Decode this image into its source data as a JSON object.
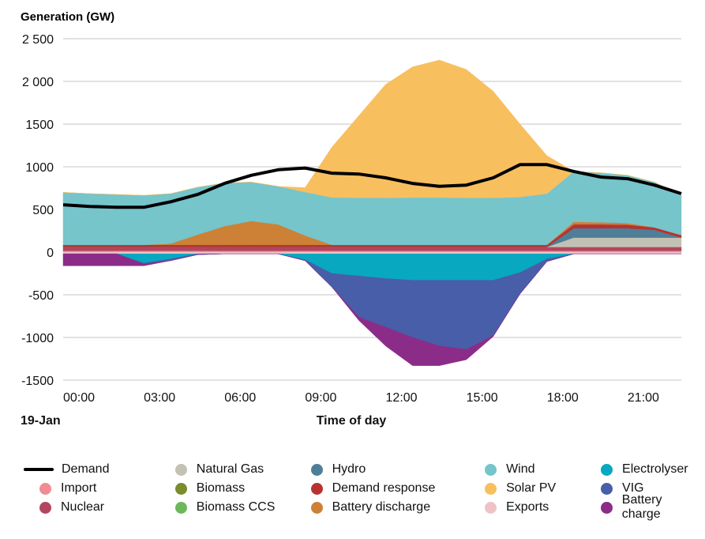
{
  "chart_data": {
    "type": "area",
    "title": "",
    "ylabel": "Generation (GW)",
    "xlabel": "Time of day",
    "date_label": "19-Jan",
    "ylim": [
      -1500,
      2500
    ],
    "yticks": [
      2500,
      2000,
      1500,
      1000,
      500,
      0,
      -500,
      -1000,
      -1500
    ],
    "ytick_labels": [
      "2 500",
      "2 000",
      "1500",
      "1000",
      "500",
      "0",
      "-500",
      "-1000",
      "-1500"
    ],
    "xticks": [
      0,
      3,
      6,
      9,
      12,
      15,
      18,
      21
    ],
    "xtick_labels": [
      "00:00",
      "03:00",
      "06:00",
      "09:00",
      "12:00",
      "15:00",
      "18:00",
      "21:00"
    ],
    "grid": true,
    "legend_position": "bottom",
    "x": [
      0,
      1,
      2,
      3,
      4,
      5,
      6,
      7,
      8,
      9,
      10,
      11,
      12,
      13,
      14,
      15,
      16,
      17,
      18,
      19,
      20,
      21,
      22,
      23
    ],
    "positive_series": [
      {
        "name": "Import",
        "color": "#f08c94",
        "values": [
          15,
          15,
          15,
          15,
          15,
          15,
          15,
          15,
          15,
          15,
          15,
          15,
          15,
          15,
          15,
          15,
          15,
          15,
          15,
          15,
          15,
          15,
          15,
          15
        ]
      },
      {
        "name": "Nuclear",
        "color": "#b2465e",
        "values": [
          45,
          45,
          45,
          45,
          45,
          45,
          45,
          45,
          45,
          45,
          45,
          45,
          45,
          45,
          45,
          45,
          45,
          45,
          45,
          45,
          45,
          45,
          45,
          45
        ]
      },
      {
        "name": "Natural Gas",
        "color": "#c3c1b3",
        "values": [
          0,
          0,
          0,
          0,
          0,
          0,
          0,
          0,
          0,
          0,
          0,
          0,
          0,
          0,
          0,
          0,
          0,
          0,
          0,
          110,
          110,
          110,
          110,
          110
        ]
      },
      {
        "name": "Hydro",
        "color": "#4f7f98",
        "values": [
          0,
          0,
          0,
          0,
          0,
          0,
          0,
          0,
          0,
          0,
          0,
          0,
          0,
          0,
          0,
          0,
          0,
          0,
          0,
          110,
          110,
          110,
          90,
          0
        ]
      },
      {
        "name": "Biomass",
        "color": "#7a8c2b",
        "values": [
          0,
          0,
          0,
          0,
          0,
          0,
          0,
          0,
          0,
          0,
          0,
          0,
          0,
          0,
          0,
          0,
          0,
          0,
          0,
          0,
          0,
          0,
          0,
          0
        ]
      },
      {
        "name": "Biomass CCS",
        "color": "#6db85a",
        "values": [
          0,
          0,
          0,
          0,
          0,
          0,
          0,
          0,
          0,
          0,
          0,
          0,
          0,
          0,
          0,
          0,
          0,
          0,
          0,
          0,
          0,
          0,
          0,
          0
        ]
      },
      {
        "name": "Demand response",
        "color": "#b83232",
        "values": [
          25,
          25,
          25,
          25,
          25,
          25,
          25,
          25,
          25,
          25,
          25,
          25,
          25,
          25,
          25,
          25,
          25,
          25,
          25,
          45,
          45,
          40,
          30,
          30
        ]
      },
      {
        "name": "Battery discharge",
        "color": "#cd8136",
        "values": [
          0,
          0,
          0,
          0,
          15,
          120,
          220,
          280,
          240,
          110,
          0,
          0,
          0,
          0,
          0,
          0,
          0,
          0,
          0,
          30,
          25,
          20,
          0,
          0
        ]
      },
      {
        "name": "Wind",
        "color": "#75c5cb",
        "values": [
          615,
          600,
          590,
          580,
          585,
          555,
          505,
          455,
          445,
          510,
          555,
          553,
          550,
          555,
          555,
          550,
          550,
          560,
          600,
          590,
          580,
          560,
          530,
          465
        ]
      },
      {
        "name": "Solar PV",
        "color": "#f8bf5f",
        "values": [
          0,
          0,
          0,
          0,
          0,
          0,
          0,
          0,
          0,
          50,
          590,
          960,
          1330,
          1530,
          1610,
          1505,
          1250,
          855,
          445,
          0,
          0,
          0,
          0,
          0
        ]
      }
    ],
    "negative_series": [
      {
        "name": "Exports",
        "color": "#efc3c6",
        "values": [
          -20,
          -20,
          -20,
          -20,
          -20,
          -20,
          -20,
          -20,
          -20,
          -20,
          -20,
          -20,
          -20,
          -20,
          -20,
          -20,
          -20,
          -20,
          -20,
          -20,
          -20,
          -20,
          -20,
          -20
        ]
      },
      {
        "name": "Electrolyser",
        "color": "#08a8c0",
        "values": [
          0,
          0,
          0,
          -110,
          -60,
          0,
          0,
          0,
          0,
          -70,
          -230,
          -260,
          -290,
          -310,
          -310,
          -310,
          -310,
          -220,
          -60,
          0,
          0,
          0,
          0,
          0
        ]
      },
      {
        "name": "VIG",
        "color": "#485ea8",
        "values": [
          0,
          0,
          0,
          -10,
          -20,
          -10,
          0,
          0,
          0,
          -10,
          -160,
          -480,
          -570,
          -670,
          -770,
          -810,
          -650,
          -250,
          -30,
          0,
          0,
          0,
          0,
          0
        ]
      },
      {
        "name": "Battery charge",
        "color": "#8b2c89",
        "values": [
          -140,
          -140,
          -140,
          -20,
          0,
          0,
          0,
          0,
          0,
          0,
          0,
          -40,
          -220,
          -330,
          -230,
          -120,
          -10,
          0,
          0,
          0,
          0,
          0,
          0,
          0
        ]
      }
    ],
    "line_series": [
      {
        "name": "Demand",
        "color": "#000000",
        "values": [
          555,
          535,
          525,
          525,
          590,
          675,
          805,
          900,
          965,
          985,
          925,
          915,
          870,
          805,
          770,
          785,
          870,
          1025,
          1025,
          945,
          880,
          860,
          785,
          685
        ]
      }
    ]
  },
  "legend": {
    "rows": [
      [
        {
          "label": "Demand",
          "type": "line",
          "color": "#000000"
        },
        {
          "label": "Natural Gas",
          "color": "#c3c1b3"
        },
        {
          "label": "Hydro",
          "color": "#4f7f98"
        },
        {
          "label": "Wind",
          "color": "#75c5cb"
        },
        {
          "label": "Electrolyser",
          "color": "#08a8c0"
        }
      ],
      [
        {
          "label": "Import",
          "color": "#f08c94"
        },
        {
          "label": "Biomass",
          "color": "#7a8c2b"
        },
        {
          "label": "Demand response",
          "color": "#b83232"
        },
        {
          "label": "Solar PV",
          "color": "#f8bf5f"
        },
        {
          "label": "VIG",
          "color": "#485ea8"
        }
      ],
      [
        {
          "label": "Nuclear",
          "color": "#b2465e"
        },
        {
          "label": "Biomass CCS",
          "color": "#6db85a"
        },
        {
          "label": "Battery discharge",
          "color": "#cd8136"
        },
        {
          "label": "Exports",
          "color": "#efc3c6"
        },
        {
          "label": "Battery charge",
          "color": "#8b2c89"
        }
      ]
    ]
  }
}
